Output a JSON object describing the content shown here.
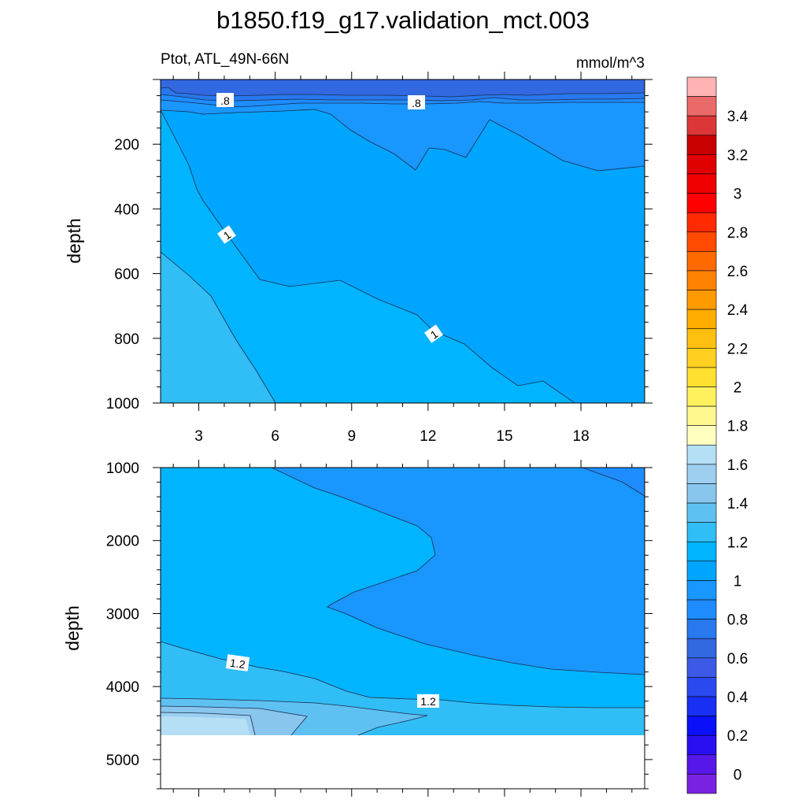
{
  "chart_data": {
    "type": "contour",
    "title": "b1850.f19_g17.validation_mct.003",
    "subtitle_left": "Ptot, ATL_49N-66N",
    "subtitle_right": "mmol/m^3",
    "panels": [
      {
        "ylabel": "depth",
        "xticks": [
          3,
          6,
          9,
          12,
          15,
          18
        ],
        "yticks": [
          200,
          400,
          600,
          800,
          1000
        ],
        "xlim": [
          1.5,
          20.5
        ],
        "ylim": [
          1000,
          0
        ],
        "contour_labels": [
          ".8",
          ".8",
          "1",
          "1"
        ]
      },
      {
        "ylabel": "depth",
        "yticks": [
          1000,
          2000,
          3000,
          4000,
          5000
        ],
        "xlim": [
          1.5,
          20.5
        ],
        "ylim": [
          5400,
          1000
        ],
        "contour_labels": [
          "1.2",
          "1.2"
        ]
      }
    ],
    "colorbar": {
      "tick_labels": [
        "3.4",
        "3.2",
        "3",
        "2.8",
        "2.6",
        "2.4",
        "2.2",
        "2",
        "1.8",
        "1.6",
        "1.4",
        "1.2",
        "1",
        "0.8",
        "0.6",
        "0.4",
        "0.2",
        "0"
      ],
      "levels": [
        3.6,
        3.5,
        3.4,
        3.3,
        3.2,
        3.1,
        3.0,
        2.9,
        2.8,
        2.7,
        2.6,
        2.5,
        2.4,
        2.3,
        2.2,
        2.1,
        2.0,
        1.9,
        1.8,
        1.7,
        1.6,
        1.5,
        1.4,
        1.3,
        1.2,
        1.1,
        1.0,
        0.9,
        0.8,
        0.7,
        0.6,
        0.5,
        0.4,
        0.3,
        0.2,
        0.1,
        0.0,
        -0.1
      ],
      "colors": [
        "#ffb3b3",
        "#ea6a6a",
        "#dc3636",
        "#c80000",
        "#e00000",
        "#f00000",
        "#ff0000",
        "#ff2a00",
        "#ff4a00",
        "#ff6a00",
        "#ff8200",
        "#ff9a00",
        "#ffad00",
        "#ffbf10",
        "#ffd020",
        "#ffe030",
        "#fff060",
        "#fff890",
        "#ffffc0",
        "#b4dff4",
        "#9ccff0",
        "#88c6ee",
        "#5fc1f2",
        "#31bdf5",
        "#00b4ff",
        "#00a5ff",
        "#1a96ff",
        "#1e8cff",
        "#2878ee",
        "#3268e0",
        "#3c5ae6",
        "#2a4af0",
        "#1730f4",
        "#0a10f8",
        "#2a10f0",
        "#5518e8",
        "#7a22e2"
      ]
    }
  }
}
